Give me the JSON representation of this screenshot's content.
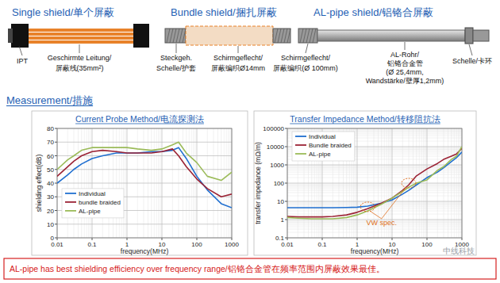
{
  "diagram": {
    "panels": [
      {
        "title": "Single shield/单个屏蔽",
        "labels": [
          "IPT",
          "Geschirmte Leitung/",
          "屏蔽线(35mm²)"
        ]
      },
      {
        "title": "Bundle shield/捆扎屏蔽",
        "labels": [
          "Steckgeh.",
          "Schelle/护套",
          "Schirmgeflecht/",
          "屏蔽编织Ø14mm"
        ]
      },
      {
        "title": "AL-pipe shield/铝铬合屏蔽",
        "labels": [
          "Schirmgeflecht/",
          "屏蔽编织(Ø 100mm)",
          "AL-Rohr/",
          "铝铬合金管",
          "(Ø 25,4mm,",
          "Wandstärke/壁厚1,2mm)",
          "Schelle/卡环"
        ]
      }
    ]
  },
  "section_title": "Measurement/措施",
  "chart_data": [
    {
      "type": "line",
      "title": "Current Probe Method/电流探测法",
      "x_label": "frequency(MHz)",
      "y_label": "shielding effect(dB)",
      "log": "x",
      "grid": true,
      "legend": "center-left",
      "x": [
        0.01,
        0.02,
        0.03,
        0.05,
        0.1,
        0.2,
        0.5,
        1,
        2,
        5,
        10,
        20,
        30,
        50,
        100,
        200,
        500,
        1000
      ],
      "series": [
        {
          "name": "Individual",
          "color": "#1f6fd0",
          "values": [
            40,
            46,
            50,
            54,
            58,
            60,
            62,
            62,
            62,
            63,
            63,
            64,
            66,
            58,
            45,
            35,
            25,
            22
          ]
        },
        {
          "name": "bundle braided",
          "color": "#9b2335",
          "values": [
            45,
            52,
            56,
            60,
            63,
            64,
            63,
            62,
            62,
            62,
            63,
            65,
            60,
            52,
            43,
            36,
            30,
            32
          ]
        },
        {
          "name": "AL-pipe",
          "color": "#9bbb59",
          "values": [
            50,
            57,
            60,
            64,
            66,
            66,
            66,
            66,
            65,
            64,
            65,
            68,
            70,
            62,
            55,
            45,
            42,
            48
          ]
        }
      ],
      "xlim": [
        0.01,
        1000
      ],
      "xticks": [
        0.01,
        0.1,
        1,
        10,
        100,
        1000
      ],
      "ylim": [
        0,
        80
      ],
      "yticks": [
        0,
        10,
        20,
        30,
        40,
        50,
        60,
        70,
        80
      ]
    },
    {
      "type": "line",
      "title": "Transfer Impedance Method/转移阻抗法",
      "x_label": "frequency(MHz)",
      "y_label": "transfer impedance (mΩ/m)",
      "log": true,
      "grid": true,
      "legend": "top-left",
      "x": [
        0.01,
        0.02,
        0.05,
        0.1,
        0.2,
        0.5,
        1,
        2,
        5,
        10,
        20,
        30,
        50,
        100,
        200,
        300,
        500,
        700,
        1000
      ],
      "series": [
        {
          "name": "Individual",
          "color": "#1f6fd0",
          "values": [
            4.5,
            4.5,
            4.5,
            4.5,
            4.5,
            4.6,
            4.8,
            5.5,
            8,
            12,
            25,
            40,
            80,
            200,
            400,
            700,
            1500,
            2500,
            5000
          ]
        },
        {
          "name": "Bundle braided",
          "color": "#9b2335",
          "values": [
            1.5,
            1.4,
            1.4,
            1.4,
            1.5,
            1.8,
            2.5,
            4,
            8,
            15,
            40,
            80,
            250,
            600,
            1200,
            2000,
            3000,
            4000,
            8000
          ]
        },
        {
          "name": "AL-pipe",
          "color": "#9bbb59",
          "values": [
            1.3,
            1.2,
            1.1,
            1.1,
            1.1,
            1.3,
            1.8,
            3,
            7,
            15,
            35,
            60,
            100,
            150,
            500,
            800,
            2000,
            3000,
            10000
          ]
        }
      ],
      "xlim": [
        0.01,
        1000
      ],
      "xticks": [
        0.01,
        0.1,
        1,
        10,
        100,
        1000
      ],
      "ylim": [
        0.1,
        100000
      ],
      "yticks": [
        0.1,
        1,
        10,
        100,
        1000,
        10000,
        100000
      ],
      "annotations": [
        {
          "text": "VW spec.",
          "x": 5,
          "y": 0.5,
          "targets": [
            {
              "x": 2,
              "y": 5
            },
            {
              "x": 30,
              "y": 100
            }
          ]
        }
      ]
    }
  ],
  "footer": "AL-pipe has best shielding efficiency over frequency range/铝铬合金管在频率范围内屏蔽效果最佳。",
  "watermark": "中线科技"
}
